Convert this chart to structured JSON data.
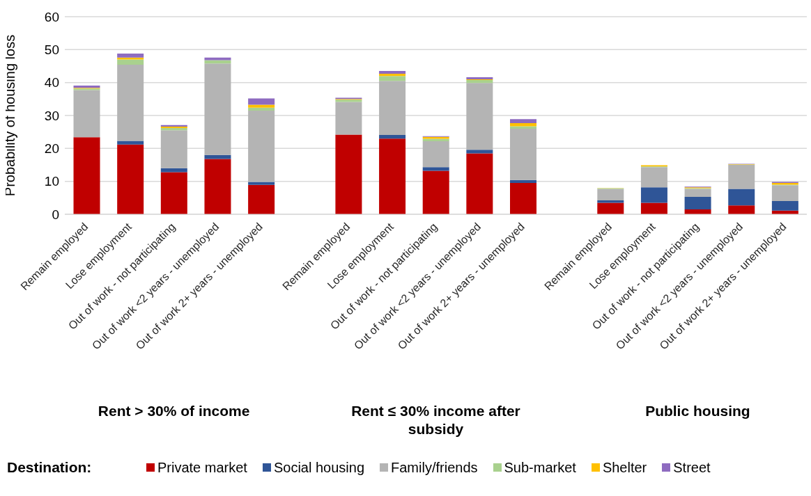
{
  "chart_data": {
    "type": "bar",
    "stacked": true,
    "ylabel": "Probability of housing loss",
    "legend_title": "Destination:",
    "legend": "bottom",
    "grid": "y",
    "ylim": [
      0,
      60
    ],
    "yticks": [
      0,
      10,
      20,
      30,
      40,
      50,
      60
    ],
    "categories": [
      "Remain employed",
      "Lose employment",
      "Out of work - not participating",
      "Out of work <2 years - unemployed",
      "Out of work 2+ years - unemployed",
      null,
      "Remain employed",
      "Lose employment",
      "Out of work - not participating",
      "Out of work <2 years - unemployed",
      "Out of work 2+ years - unemployed",
      null,
      "Remain employed",
      "Lose employment",
      "Out of work - not participating",
      "Out of work <2 years - unemployed",
      "Out of work 2+ years - unemployed"
    ],
    "series": [
      {
        "name": "Private market",
        "color": "#c00000",
        "values": [
          23.4,
          21.2,
          12.8,
          16.8,
          8.9,
          null,
          24.2,
          23.0,
          13.2,
          18.5,
          9.5,
          null,
          3.5,
          3.5,
          1.5,
          2.7,
          1.1
        ]
      },
      {
        "name": "Social housing",
        "color": "#2f5597",
        "values": [
          null,
          1.1,
          1.2,
          1.2,
          0.9,
          null,
          null,
          1.1,
          1.1,
          1.1,
          0.9,
          null,
          0.7,
          4.7,
          3.8,
          5.0,
          2.9
        ]
      },
      {
        "name": "Family/friends",
        "color": "#b4b4b4",
        "values": [
          14.3,
          23.1,
          11.5,
          27.8,
          21.7,
          null,
          9.9,
          16.4,
          7.9,
          20.3,
          15.6,
          null,
          3.5,
          6.1,
          2.4,
          7.3,
          4.8
        ]
      },
      {
        "name": "Sub-market",
        "color": "#a9d18e",
        "values": [
          0.5,
          1.6,
          0.7,
          1.0,
          0.9,
          null,
          0.7,
          1.5,
          0.7,
          0.9,
          0.7,
          null,
          0.2,
          0.2,
          0.2,
          0.1,
          0.2
        ]
      },
      {
        "name": "Shelter",
        "color": "#ffc000",
        "values": [
          0.2,
          0.6,
          0.4,
          null,
          0.9,
          null,
          0.2,
          0.7,
          0.6,
          0.2,
          1.0,
          null,
          0.1,
          0.4,
          0.3,
          0.1,
          0.5
        ]
      },
      {
        "name": "Street",
        "color": "#8e6bc0",
        "values": [
          0.7,
          1.2,
          0.5,
          0.8,
          1.9,
          null,
          0.4,
          0.8,
          0.2,
          0.6,
          1.2,
          null,
          null,
          null,
          0.2,
          0.1,
          0.3
        ]
      }
    ],
    "annotations": [
      "Rent > 30% of income",
      "Rent ≤ 30% income after subsidy",
      "Public housing"
    ]
  }
}
